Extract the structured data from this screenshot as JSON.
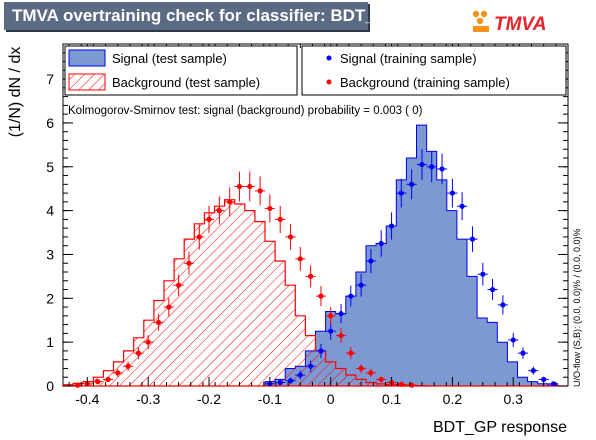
{
  "header": {
    "title": "TMVA overtraining check for classifier: BDT_GP",
    "logo_text": "TMVA"
  },
  "side_note": "U/O-flow (S,B): (0.0, 0.0)% / (0.0, 0.0)%",
  "ks_text": "Kolmogorov-Smirnov test: signal (background) probability = 0.003 (    0)",
  "legend": {
    "signal_test": "Signal (test sample)",
    "background_test": "Background (test sample)",
    "signal_train": "Signal (training sample)",
    "background_train": "Background (training sample)"
  },
  "colors": {
    "signal_fill": "#7d99d1",
    "signal_line": "#0000ee",
    "background_line": "#ff0000",
    "signal_marker": "#0000ff",
    "background_marker": "#ff0000",
    "title_bg": "#5c6b84",
    "logo_orange": "#f7931e",
    "logo_red": "#e8232b"
  },
  "chart_data": {
    "type": "histogram",
    "xlabel": "BDT_GP response",
    "ylabel": "(1/N) dN / dx",
    "xlim": [
      -0.44,
      0.39
    ],
    "ylim": [
      0,
      7.8
    ],
    "xticks": [
      -0.4,
      -0.3,
      -0.2,
      -0.1,
      0,
      0.1,
      0.2,
      0.3
    ],
    "xtick_labels": [
      "-0.4",
      "-0.3",
      "-0.2",
      "-0.1",
      "0",
      "0.1",
      "0.2",
      "0.3"
    ],
    "yticks": [
      0,
      1,
      2,
      3,
      4,
      5,
      6,
      7
    ],
    "ytick_labels": [
      "0",
      "1",
      "2",
      "3",
      "4",
      "5",
      "6",
      "7"
    ],
    "bin_edges": [
      -0.44,
      -0.4234,
      -0.4068,
      -0.3902,
      -0.3736,
      -0.357,
      -0.3404,
      -0.3238,
      -0.3072,
      -0.2906,
      -0.274,
      -0.2574,
      -0.2408,
      -0.2242,
      -0.2076,
      -0.191,
      -0.1744,
      -0.1578,
      -0.1412,
      -0.1246,
      -0.108,
      -0.0914,
      -0.0748,
      -0.0582,
      -0.0416,
      -0.025,
      -0.0084,
      0.0082,
      0.0248,
      0.0414,
      0.058,
      0.0746,
      0.0912,
      0.1078,
      0.1244,
      0.141,
      0.1576,
      0.1742,
      0.1908,
      0.2074,
      0.224,
      0.2406,
      0.2572,
      0.2738,
      0.2904,
      0.307,
      0.3236,
      0.3402,
      0.3568,
      0.3734,
      0.39
    ],
    "series": [
      {
        "name": "Signal (test sample)",
        "kind": "hist_filled",
        "values": [
          0,
          0,
          0,
          0,
          0,
          0,
          0,
          0,
          0,
          0,
          0,
          0,
          0,
          0,
          0,
          0,
          0,
          0,
          0,
          0,
          0.1,
          0.15,
          0.4,
          0.45,
          0.8,
          1.25,
          1.7,
          1.65,
          2.05,
          2.6,
          3.2,
          3.25,
          3.65,
          4.7,
          5.2,
          5.95,
          5.35,
          4.7,
          4.0,
          3.35,
          2.5,
          1.55,
          1.45,
          1.0,
          0.55,
          0.2,
          0.1,
          0.05,
          0.02,
          0
        ]
      },
      {
        "name": "Background (test sample)",
        "kind": "hist_hatched",
        "values": [
          0.03,
          0.06,
          0.1,
          0.2,
          0.35,
          0.55,
          0.8,
          1.1,
          1.5,
          1.95,
          2.4,
          2.9,
          3.35,
          3.7,
          3.95,
          4.1,
          4.25,
          4.15,
          4.0,
          3.75,
          3.3,
          2.85,
          2.3,
          1.6,
          1.15,
          0.8,
          0.55,
          0.4,
          0.25,
          0.15,
          0.08,
          0.05,
          0.03,
          0.02,
          0.01,
          0.01,
          0.005,
          0,
          0,
          0,
          0,
          0,
          0,
          0,
          0,
          0,
          0,
          0,
          0,
          0
        ]
      },
      {
        "name": "Signal (training sample)",
        "kind": "points",
        "x": [
          -0.1,
          -0.083,
          -0.066,
          -0.05,
          -0.033,
          -0.016,
          0.0,
          0.017,
          0.033,
          0.05,
          0.066,
          0.083,
          0.1,
          0.116,
          0.133,
          0.15,
          0.166,
          0.183,
          0.2,
          0.216,
          0.233,
          0.25,
          0.266,
          0.283,
          0.3,
          0.316,
          0.333,
          0.35,
          0.366
        ],
        "y": [
          0.05,
          0.08,
          0.12,
          0.25,
          0.45,
          0.8,
          1.25,
          1.65,
          2.05,
          2.3,
          2.85,
          3.25,
          3.65,
          4.4,
          4.6,
          5.05,
          5.0,
          4.95,
          4.4,
          4.1,
          3.35,
          2.55,
          2.2,
          1.85,
          1.05,
          0.75,
          0.35,
          0.15,
          0.05
        ],
        "yerr": [
          0.05,
          0.05,
          0.07,
          0.1,
          0.13,
          0.16,
          0.2,
          0.22,
          0.24,
          0.26,
          0.28,
          0.3,
          0.31,
          0.33,
          0.34,
          0.35,
          0.35,
          0.35,
          0.33,
          0.32,
          0.29,
          0.26,
          0.24,
          0.22,
          0.16,
          0.13,
          0.09,
          0.06,
          0.04
        ]
      },
      {
        "name": "Background (training sample)",
        "kind": "points",
        "x": [
          -0.416,
          -0.4,
          -0.383,
          -0.366,
          -0.35,
          -0.333,
          -0.316,
          -0.3,
          -0.283,
          -0.266,
          -0.25,
          -0.233,
          -0.216,
          -0.2,
          -0.183,
          -0.166,
          -0.15,
          -0.133,
          -0.116,
          -0.1,
          -0.083,
          -0.066,
          -0.05,
          -0.033,
          -0.016,
          0.0,
          0.017,
          0.033,
          0.05,
          0.066,
          0.083,
          0.1,
          0.116,
          0.133
        ],
        "y": [
          0.02,
          0.05,
          0.1,
          0.15,
          0.3,
          0.45,
          0.75,
          1.0,
          1.45,
          1.8,
          2.3,
          2.8,
          3.4,
          3.8,
          4.0,
          4.2,
          4.55,
          4.55,
          4.45,
          4.05,
          3.8,
          3.4,
          2.9,
          2.5,
          2.05,
          1.6,
          1.15,
          0.75,
          0.4,
          0.3,
          0.15,
          0.08,
          0.04,
          0.02
        ],
        "yerr": [
          0.02,
          0.03,
          0.05,
          0.06,
          0.09,
          0.11,
          0.14,
          0.16,
          0.19,
          0.21,
          0.24,
          0.26,
          0.29,
          0.31,
          0.32,
          0.33,
          0.34,
          0.34,
          0.33,
          0.32,
          0.31,
          0.29,
          0.27,
          0.25,
          0.23,
          0.2,
          0.17,
          0.14,
          0.1,
          0.09,
          0.06,
          0.05,
          0.03,
          0.02
        ]
      }
    ]
  }
}
